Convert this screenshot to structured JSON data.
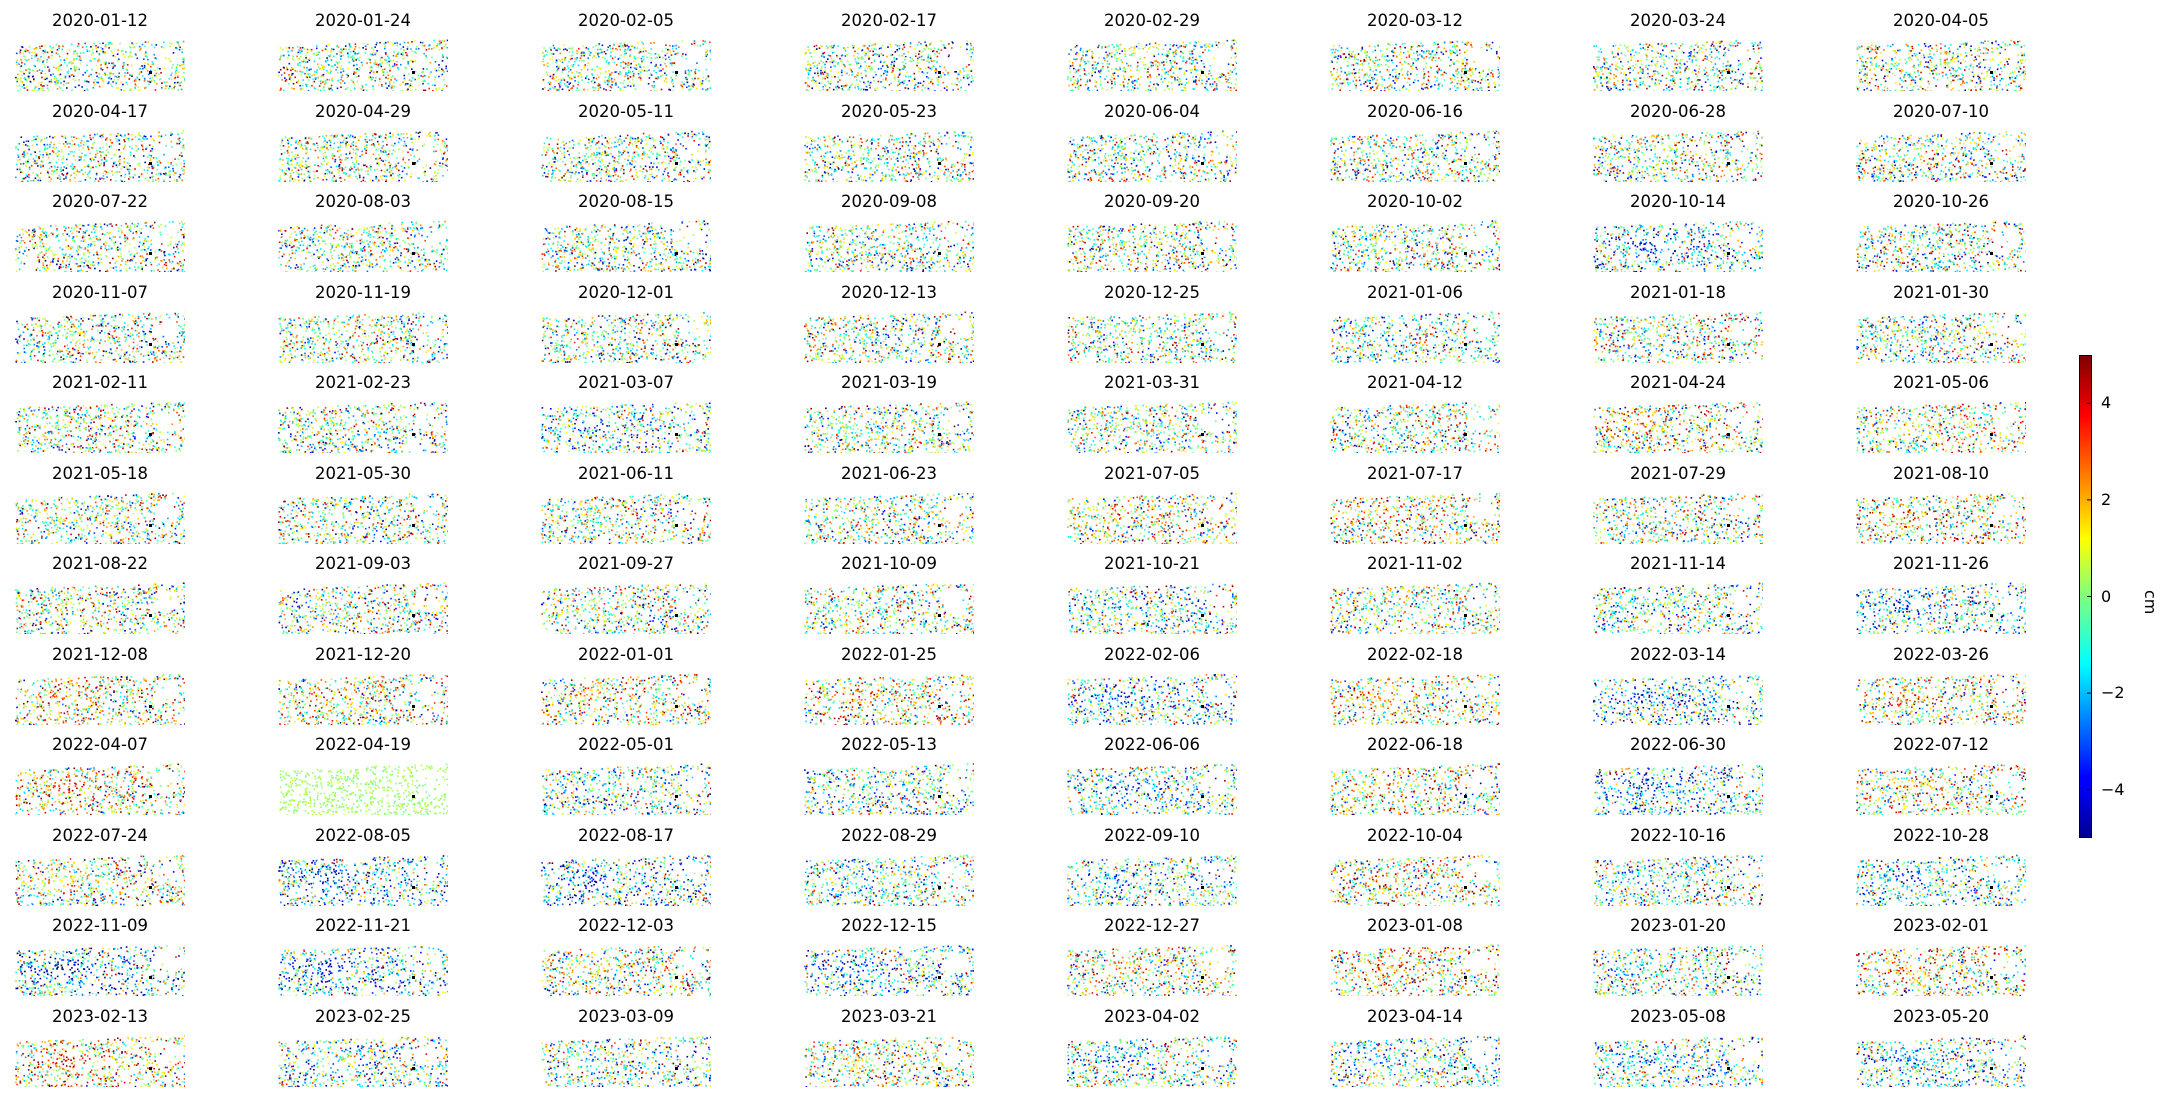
{
  "chart_data": {
    "type": "heatmap",
    "description_of_marks": "small-multiple scatter maps of displacement",
    "panels": [
      "2020-01-12",
      "2020-01-24",
      "2020-02-05",
      "2020-02-17",
      "2020-02-29",
      "2020-03-12",
      "2020-03-24",
      "2020-04-05",
      "2020-04-17",
      "2020-04-29",
      "2020-05-11",
      "2020-05-23",
      "2020-06-04",
      "2020-06-16",
      "2020-06-28",
      "2020-07-10",
      "2020-07-22",
      "2020-08-03",
      "2020-08-15",
      "2020-09-08",
      "2020-09-20",
      "2020-10-02",
      "2020-10-14",
      "2020-10-26",
      "2020-11-07",
      "2020-11-19",
      "2020-12-01",
      "2020-12-13",
      "2020-12-25",
      "2021-01-06",
      "2021-01-18",
      "2021-01-30",
      "2021-02-11",
      "2021-02-23",
      "2021-03-07",
      "2021-03-19",
      "2021-03-31",
      "2021-04-12",
      "2021-04-24",
      "2021-05-06",
      "2021-05-18",
      "2021-05-30",
      "2021-06-11",
      "2021-06-23",
      "2021-07-05",
      "2021-07-17",
      "2021-07-29",
      "2021-08-10",
      "2021-08-22",
      "2021-09-03",
      "2021-09-27",
      "2021-10-09",
      "2021-10-21",
      "2021-11-02",
      "2021-11-14",
      "2021-11-26",
      "2021-12-08",
      "2021-12-20",
      "2022-01-01",
      "2022-01-25",
      "2022-02-06",
      "2022-02-18",
      "2022-03-14",
      "2022-03-26",
      "2022-04-07",
      "2022-04-19",
      "2022-05-01",
      "2022-05-13",
      "2022-06-06",
      "2022-06-18",
      "2022-06-30",
      "2022-07-12",
      "2022-07-24",
      "2022-08-05",
      "2022-08-17",
      "2022-08-29",
      "2022-09-10",
      "2022-10-04",
      "2022-10-16",
      "2022-10-28",
      "2022-11-09",
      "2022-11-21",
      "2022-12-03",
      "2022-12-15",
      "2022-12-27",
      "2023-01-08",
      "2023-01-20",
      "2023-02-01",
      "2023-02-13",
      "2023-02-25",
      "2023-03-09",
      "2023-03-21",
      "2023-04-02",
      "2023-04-14",
      "2023-05-08",
      "2023-05-20"
    ],
    "colorbar": {
      "colormap": "jet",
      "range": [
        -5,
        5
      ],
      "ticks": [
        4,
        2,
        0,
        -2,
        -4
      ],
      "tick_labels": [
        "4",
        "2",
        "0",
        "−2",
        "−4"
      ],
      "unit_label": "cm"
    },
    "panel_tendency": {
      "2020-10-14": -3,
      "2021-01-06": -1,
      "2021-03-07": -2,
      "2021-04-24": 2,
      "2021-05-06": 1.5,
      "2021-07-05": 2,
      "2021-07-17": 2,
      "2021-08-10": 2,
      "2021-08-22": 1,
      "2021-10-21": -1.2,
      "2021-11-14": -1.2,
      "2021-11-26": -3,
      "2021-12-08": 2.5,
      "2021-12-20": 2,
      "2022-01-01": 2,
      "2022-01-25": 2,
      "2022-02-06": -2.5,
      "2022-02-18": 1.5,
      "2022-03-14": -3,
      "2022-03-26": 2,
      "2022-04-07": 3,
      "2022-04-19": 0.3,
      "2022-05-01": -1.5,
      "2022-05-13": -1,
      "2022-06-06": -2,
      "2022-06-18": 1.5,
      "2022-06-30": -3.5,
      "2022-07-12": 1.5,
      "2022-07-24": 1,
      "2022-08-05": -3.5,
      "2022-08-17": -3.5,
      "2022-08-29": -1,
      "2022-09-10": -2,
      "2022-10-04": 2,
      "2022-10-16": -1,
      "2022-10-28": -3,
      "2022-11-09": -4,
      "2022-11-21": -3.5,
      "2022-12-03": 1,
      "2022-12-15": -3,
      "2022-12-27": 1.5,
      "2023-01-08": 3,
      "2023-01-20": -1.5,
      "2023-02-01": 2,
      "2023-02-13": 3,
      "2023-02-25": -1,
      "2023-03-09": -1,
      "2023-03-21": 1,
      "2023-04-02": -2,
      "2023-04-14": -2,
      "2023-05-08": -2,
      "2023-05-20": -2
    }
  }
}
